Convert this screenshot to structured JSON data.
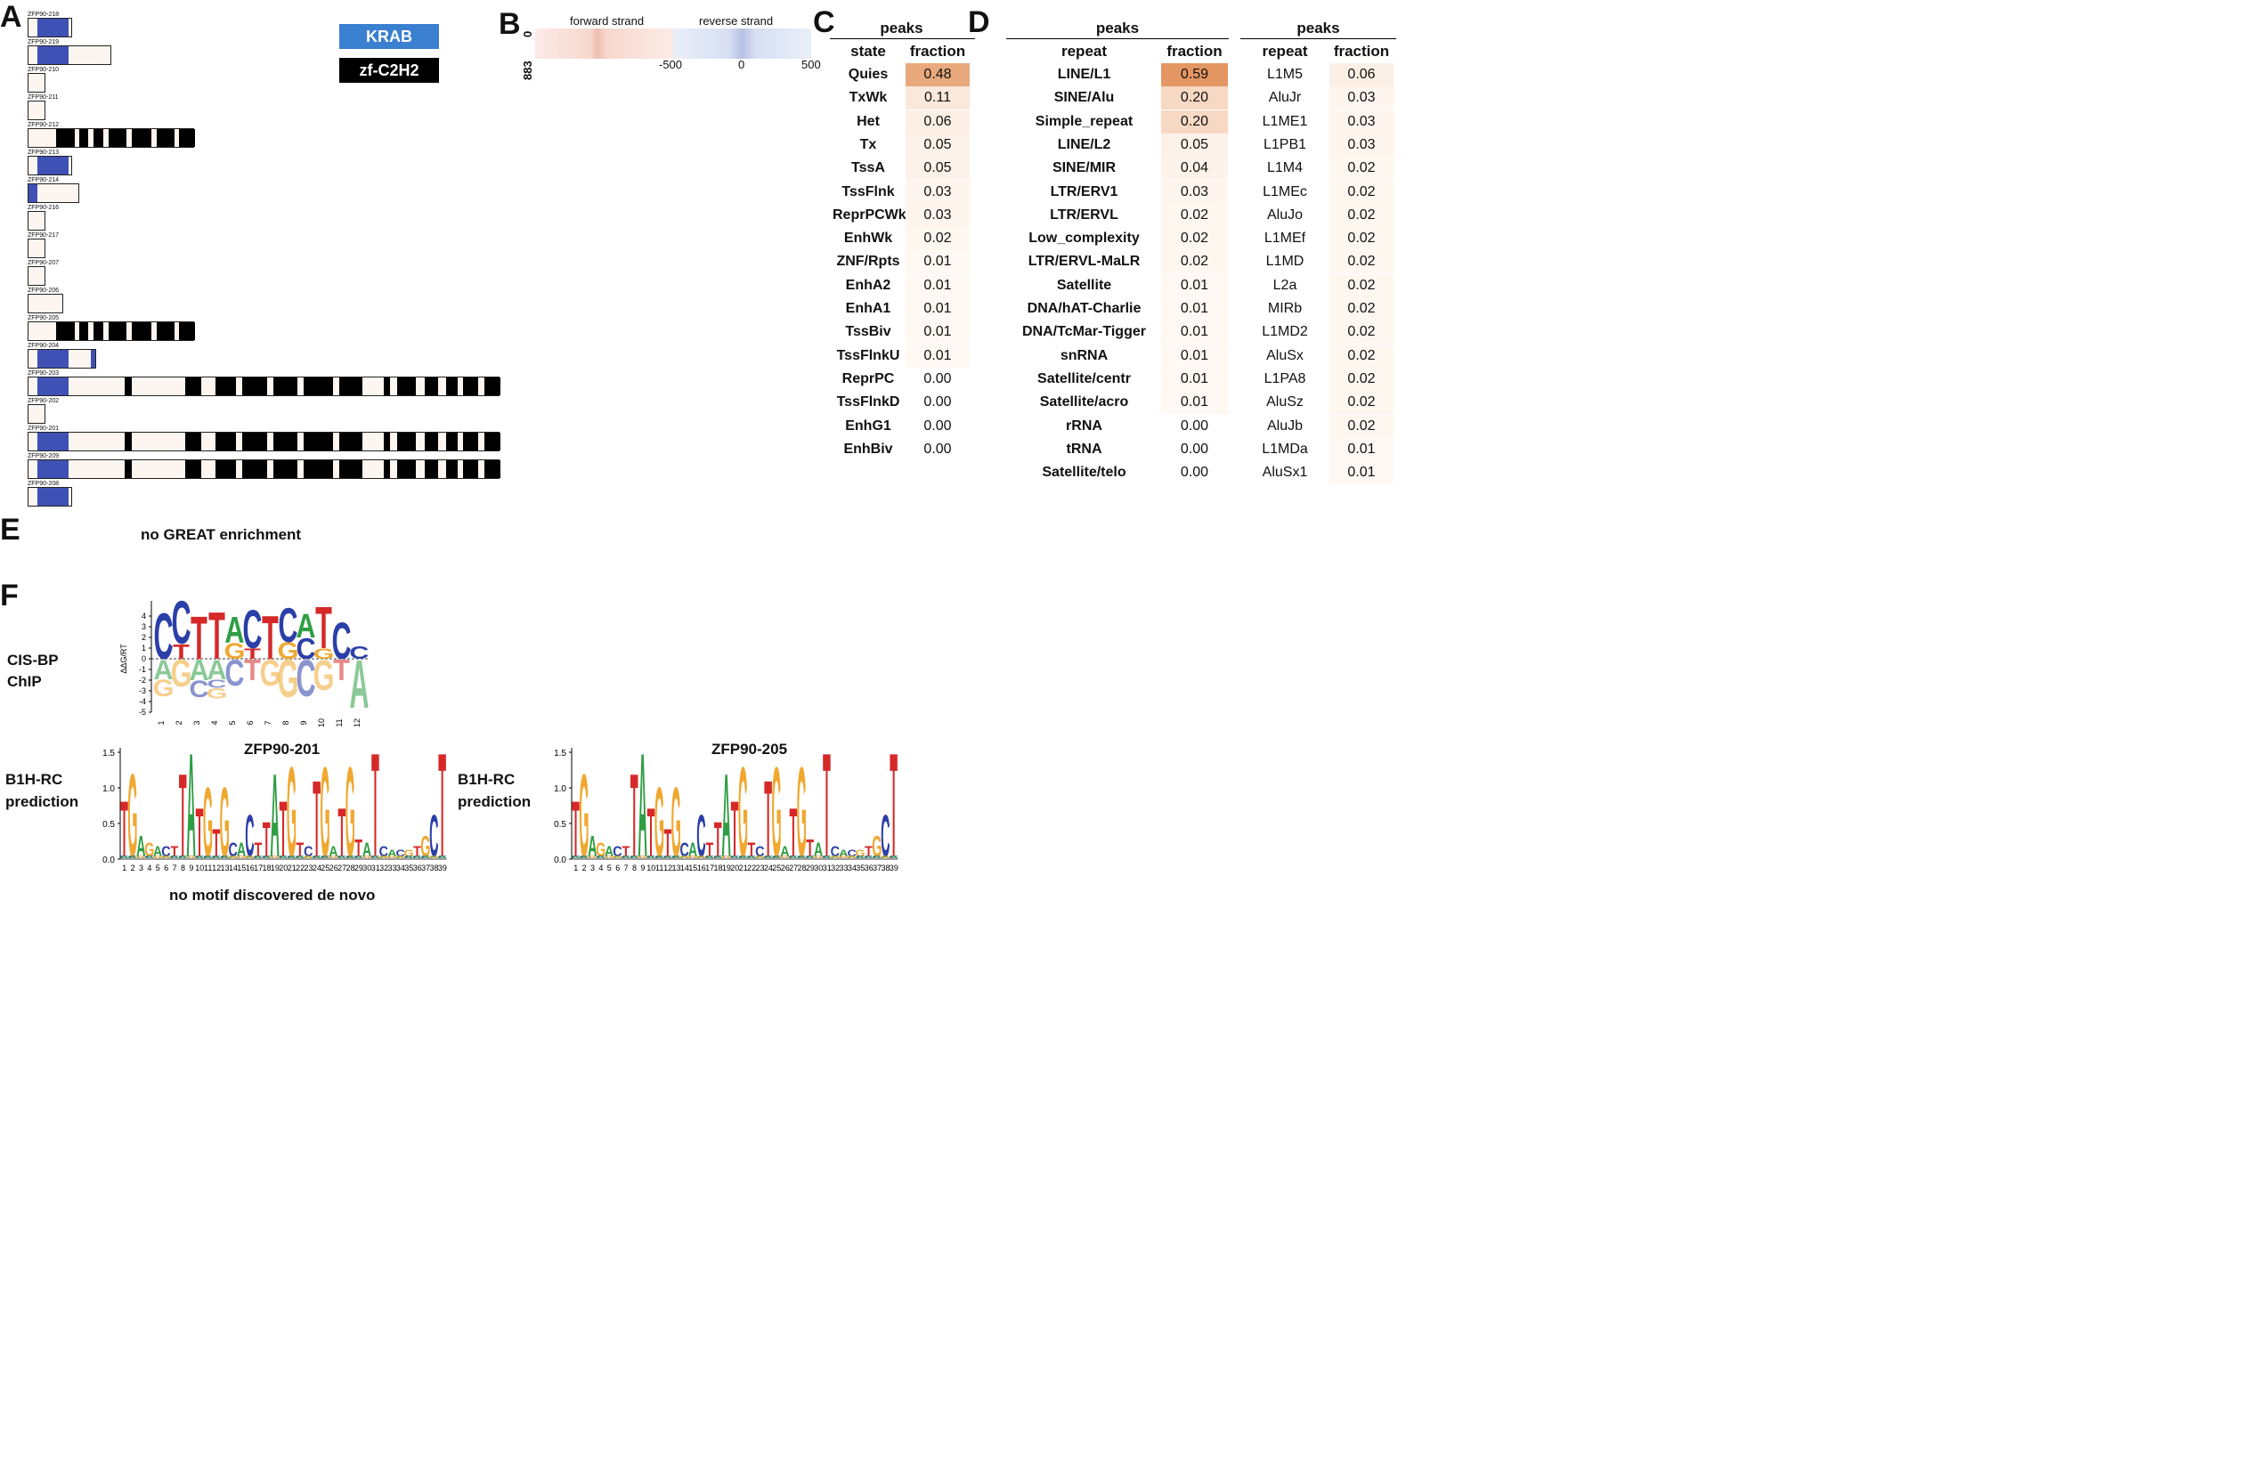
{
  "panels": {
    "A": "A",
    "B": "B",
    "C": "C",
    "D": "D",
    "E": "E",
    "F": "F"
  },
  "colors": {
    "krab": "#3f51b5",
    "zf": "#000000",
    "bar_fill": "#fdf5ef",
    "fwd": "#e8a090",
    "rev": "#8aa0d0",
    "logo_A": "#2e9e44",
    "logo_C": "#2b3fa8",
    "logo_G": "#f0a830",
    "logo_T": "#d62828"
  },
  "legend": {
    "krab": "KRAB",
    "zf": "zf-C2H2"
  },
  "isoforms": [
    {
      "name": "ZFP90-218",
      "len": 50,
      "krab": [
        10,
        45
      ],
      "zf": []
    },
    {
      "name": "ZFP90-219",
      "len": 94,
      "krab": [
        10,
        45
      ],
      "zf": []
    },
    {
      "name": "ZFP90-210",
      "len": 20,
      "krab": null,
      "zf": []
    },
    {
      "name": "ZFP90-211",
      "len": 20,
      "krab": null,
      "zf": []
    },
    {
      "name": "ZFP90-212",
      "len": 187,
      "krab": null,
      "zf": [
        [
          31,
          52
        ],
        [
          57,
          67
        ],
        [
          73,
          84
        ],
        [
          90,
          110
        ],
        [
          116,
          138
        ],
        [
          144,
          164
        ],
        [
          169,
          187
        ]
      ]
    },
    {
      "name": "ZFP90-213",
      "len": 50,
      "krab": [
        10,
        45
      ],
      "zf": []
    },
    {
      "name": "ZFP90-214",
      "len": 58,
      "krab": [
        0,
        10
      ],
      "zf": []
    },
    {
      "name": "ZFP90-216",
      "len": 20,
      "krab": null,
      "zf": []
    },
    {
      "name": "ZFP90-217",
      "len": 20,
      "krab": null,
      "zf": []
    },
    {
      "name": "ZFP90-207",
      "len": 20,
      "krab": null,
      "zf": []
    },
    {
      "name": "ZFP90-206",
      "len": 40,
      "krab": null,
      "zf": []
    },
    {
      "name": "ZFP90-205",
      "len": 187,
      "krab": null,
      "zf": [
        [
          31,
          52
        ],
        [
          57,
          67
        ],
        [
          73,
          84
        ],
        [
          90,
          110
        ],
        [
          116,
          138
        ],
        [
          144,
          164
        ],
        [
          169,
          187
        ]
      ]
    },
    {
      "name": "ZFP90-204",
      "len": 70,
      "krab": [
        10,
        45
      ],
      "zf": []
    },
    {
      "name": "ZFP90-203",
      "len": 530,
      "krab": [
        10,
        45
      ],
      "zf": [
        [
          108,
          116
        ],
        [
          176,
          194
        ],
        [
          210,
          233
        ],
        [
          240,
          268
        ],
        [
          275,
          302
        ],
        [
          309,
          342
        ],
        [
          349,
          375
        ],
        [
          399,
          406
        ],
        [
          414,
          435
        ],
        [
          445,
          460
        ],
        [
          469,
          482
        ],
        [
          488,
          505
        ],
        [
          512,
          530
        ]
      ]
    },
    {
      "name": "ZFP90-202",
      "len": 20,
      "krab": null,
      "zf": []
    },
    {
      "name": "ZFP90-201",
      "len": 530,
      "krab": [
        10,
        45
      ],
      "zf": [
        [
          108,
          116
        ],
        [
          176,
          194
        ],
        [
          210,
          233
        ],
        [
          240,
          268
        ],
        [
          275,
          302
        ],
        [
          309,
          342
        ],
        [
          349,
          375
        ],
        [
          399,
          406
        ],
        [
          414,
          435
        ],
        [
          445,
          460
        ],
        [
          469,
          482
        ],
        [
          488,
          505
        ],
        [
          512,
          530
        ]
      ]
    },
    {
      "name": "ZFP90-209",
      "len": 530,
      "krab": [
        10,
        45
      ],
      "zf": [
        [
          108,
          116
        ],
        [
          176,
          194
        ],
        [
          210,
          233
        ],
        [
          240,
          268
        ],
        [
          275,
          302
        ],
        [
          309,
          342
        ],
        [
          349,
          375
        ],
        [
          399,
          406
        ],
        [
          414,
          435
        ],
        [
          445,
          460
        ],
        [
          469,
          482
        ],
        [
          488,
          505
        ],
        [
          512,
          530
        ]
      ]
    },
    {
      "name": "ZFP90-208",
      "len": 50,
      "krab": [
        10,
        45
      ],
      "zf": []
    }
  ],
  "panelB": {
    "forward": "forward strand",
    "reverse": "reverse strand",
    "y_top": "0",
    "y_bottom": "883",
    "x_ticks": [
      "-500",
      "0",
      "500"
    ]
  },
  "panelC": {
    "group": "peaks",
    "col1": "state",
    "col2": "fraction",
    "rows": [
      {
        "k": "Quies",
        "v": "0.48",
        "f": 0.48
      },
      {
        "k": "TxWk",
        "v": "0.11",
        "f": 0.11
      },
      {
        "k": "Het",
        "v": "0.06",
        "f": 0.06
      },
      {
        "k": "Tx",
        "v": "0.05",
        "f": 0.05
      },
      {
        "k": "TssA",
        "v": "0.05",
        "f": 0.05
      },
      {
        "k": "TssFlnk",
        "v": "0.03",
        "f": 0.03
      },
      {
        "k": "ReprPCWk",
        "v": "0.03",
        "f": 0.03
      },
      {
        "k": "EnhWk",
        "v": "0.02",
        "f": 0.02
      },
      {
        "k": "ZNF/Rpts",
        "v": "0.01",
        "f": 0.01
      },
      {
        "k": "EnhA2",
        "v": "0.01",
        "f": 0.01
      },
      {
        "k": "EnhA1",
        "v": "0.01",
        "f": 0.01
      },
      {
        "k": "TssBiv",
        "v": "0.01",
        "f": 0.01
      },
      {
        "k": "TssFlnkU",
        "v": "0.01",
        "f": 0.01
      },
      {
        "k": "ReprPC",
        "v": "0.00",
        "f": 0
      },
      {
        "k": "TssFlnkD",
        "v": "0.00",
        "f": 0
      },
      {
        "k": "EnhG1",
        "v": "0.00",
        "f": 0
      },
      {
        "k": "EnhBiv",
        "v": "0.00",
        "f": 0
      }
    ]
  },
  "panelD1": {
    "group": "peaks",
    "col1": "repeat",
    "col2": "fraction",
    "rows": [
      {
        "k": "LINE/L1",
        "v": "0.59",
        "f": 0.59
      },
      {
        "k": "SINE/Alu",
        "v": "0.20",
        "f": 0.2
      },
      {
        "k": "Simple_repeat",
        "v": "0.20",
        "f": 0.2
      },
      {
        "k": "LINE/L2",
        "v": "0.05",
        "f": 0.05
      },
      {
        "k": "SINE/MIR",
        "v": "0.04",
        "f": 0.04
      },
      {
        "k": "LTR/ERV1",
        "v": "0.03",
        "f": 0.03
      },
      {
        "k": "LTR/ERVL",
        "v": "0.02",
        "f": 0.02
      },
      {
        "k": "Low_complexity",
        "v": "0.02",
        "f": 0.02
      },
      {
        "k": "LTR/ERVL-MaLR",
        "v": "0.02",
        "f": 0.02
      },
      {
        "k": "Satellite",
        "v": "0.01",
        "f": 0.01
      },
      {
        "k": "DNA/hAT-Charlie",
        "v": "0.01",
        "f": 0.01
      },
      {
        "k": "DNA/TcMar-Tigger",
        "v": "0.01",
        "f": 0.01
      },
      {
        "k": "snRNA",
        "v": "0.01",
        "f": 0.01
      },
      {
        "k": "Satellite/centr",
        "v": "0.01",
        "f": 0.01
      },
      {
        "k": "Satellite/acro",
        "v": "0.01",
        "f": 0.01
      },
      {
        "k": "rRNA",
        "v": "0.00",
        "f": 0
      },
      {
        "k": "tRNA",
        "v": "0.00",
        "f": 0
      },
      {
        "k": "Satellite/telo",
        "v": "0.00",
        "f": 0
      }
    ]
  },
  "panelD2": {
    "group": "peaks",
    "col1": "repeat",
    "col2": "fraction",
    "rows": [
      {
        "k": "L1M5",
        "v": "0.06",
        "f": 0.06
      },
      {
        "k": "AluJr",
        "v": "0.03",
        "f": 0.03
      },
      {
        "k": "L1ME1",
        "v": "0.03",
        "f": 0.03
      },
      {
        "k": "L1PB1",
        "v": "0.03",
        "f": 0.03
      },
      {
        "k": "L1M4",
        "v": "0.02",
        "f": 0.02
      },
      {
        "k": "L1MEc",
        "v": "0.02",
        "f": 0.02
      },
      {
        "k": "AluJo",
        "v": "0.02",
        "f": 0.02
      },
      {
        "k": "L1MEf",
        "v": "0.02",
        "f": 0.02
      },
      {
        "k": "L1MD",
        "v": "0.02",
        "f": 0.02
      },
      {
        "k": "L2a",
        "v": "0.02",
        "f": 0.02
      },
      {
        "k": "MIRb",
        "v": "0.02",
        "f": 0.02
      },
      {
        "k": "L1MD2",
        "v": "0.02",
        "f": 0.02
      },
      {
        "k": "AluSx",
        "v": "0.02",
        "f": 0.02
      },
      {
        "k": "L1PA8",
        "v": "0.02",
        "f": 0.02
      },
      {
        "k": "AluSz",
        "v": "0.02",
        "f": 0.02
      },
      {
        "k": "AluJb",
        "v": "0.02",
        "f": 0.02
      },
      {
        "k": "L1MDa",
        "v": "0.01",
        "f": 0.01
      },
      {
        "k": "AluSx1",
        "v": "0.01",
        "f": 0.01
      }
    ]
  },
  "panelE": {
    "text": "no GREAT enrichment"
  },
  "panelF": {
    "cisbp_label": [
      "CIS-BP",
      "ChIP"
    ],
    "cisbp_ylabel": "ΔΔG/RT",
    "cisbp_yticks": [
      "4",
      "3",
      "2",
      "1",
      "0",
      "-1",
      "-2",
      "-3",
      "-4",
      "-5"
    ],
    "cisbp_xticks": [
      "1",
      "2",
      "3",
      "4",
      "5",
      "6",
      "7",
      "8",
      "9",
      "10",
      "11",
      "12"
    ],
    "cisbp_top": [
      [
        "C"
      ],
      [
        "C",
        "T"
      ],
      [
        "T"
      ],
      [
        "T"
      ],
      [
        "A",
        "G"
      ],
      [
        "C",
        "T"
      ],
      [
        "T"
      ],
      [
        "C",
        "G"
      ],
      [
        "A",
        "C"
      ],
      [
        "T",
        "G"
      ],
      [
        "C"
      ],
      [
        "C"
      ]
    ],
    "cisbp_bottom": [
      [
        "A",
        "G"
      ],
      [
        "G"
      ],
      [
        "A",
        "C"
      ],
      [
        "A",
        "C",
        "G"
      ],
      [
        "C"
      ],
      [
        "T"
      ],
      [
        "G"
      ],
      [
        "G"
      ],
      [
        "C"
      ],
      [
        "G"
      ],
      [
        "T"
      ],
      [
        "A"
      ]
    ],
    "logo1": {
      "title": "ZFP90-201",
      "label": [
        "B1H-RC",
        "prediction"
      ]
    },
    "logo2": {
      "title": "ZFP90-205",
      "label": [
        "B1H-RC",
        "prediction"
      ]
    },
    "logo_yticks": [
      "1.5",
      "1.0",
      "0.5",
      "0.0"
    ],
    "logo_xticks": [
      "1",
      "2",
      "3",
      "4",
      "5",
      "6",
      "7",
      "8",
      "9",
      "10",
      "11",
      "12",
      "13",
      "14",
      "15",
      "16",
      "17",
      "18",
      "19",
      "20",
      "21",
      "22",
      "23",
      "24",
      "25",
      "26",
      "27",
      "28",
      "29",
      "30",
      "31",
      "32",
      "33",
      "34",
      "35",
      "36",
      "37",
      "38",
      "39"
    ],
    "logo_letters": [
      {
        "b": "T",
        "h": 0.8
      },
      {
        "b": "G",
        "h": 1.2
      },
      {
        "b": "A",
        "h": 0.3
      },
      {
        "b": "G",
        "h": 0.2
      },
      {
        "b": "A",
        "h": 0.15
      },
      {
        "b": "C",
        "h": 0.15
      },
      {
        "b": "T",
        "h": 0.15
      },
      {
        "b": "T",
        "h": 1.2
      },
      {
        "b": "A",
        "h": 1.5
      },
      {
        "b": "T",
        "h": 0.7
      },
      {
        "b": "G",
        "h": 1.0
      },
      {
        "b": "T",
        "h": 0.4
      },
      {
        "b": "G",
        "h": 1.0
      },
      {
        "b": "C",
        "h": 0.2
      },
      {
        "b": "A",
        "h": 0.2
      },
      {
        "b": "C",
        "h": 0.6
      },
      {
        "b": "T",
        "h": 0.2
      },
      {
        "b": "T",
        "h": 0.5
      },
      {
        "b": "A",
        "h": 1.2
      },
      {
        "b": "T",
        "h": 0.8
      },
      {
        "b": "G",
        "h": 1.3
      },
      {
        "b": "T",
        "h": 0.2
      },
      {
        "b": "C",
        "h": 0.15
      },
      {
        "b": "T",
        "h": 1.1
      },
      {
        "b": "G",
        "h": 1.3
      },
      {
        "b": "A",
        "h": 0.15
      },
      {
        "b": "T",
        "h": 0.7
      },
      {
        "b": "G",
        "h": 1.3
      },
      {
        "b": "T",
        "h": 0.25
      },
      {
        "b": "A",
        "h": 0.2
      },
      {
        "b": "T",
        "h": 1.5
      },
      {
        "b": "C",
        "h": 0.15
      },
      {
        "b": "A",
        "h": 0.1
      },
      {
        "b": "C",
        "h": 0.1
      },
      {
        "b": "G",
        "h": 0.1
      },
      {
        "b": "T",
        "h": 0.15
      },
      {
        "b": "G",
        "h": 0.3
      },
      {
        "b": "C",
        "h": 0.6
      },
      {
        "b": "T",
        "h": 1.5
      }
    ]
  },
  "bottom_note": "no motif discovered de novo"
}
